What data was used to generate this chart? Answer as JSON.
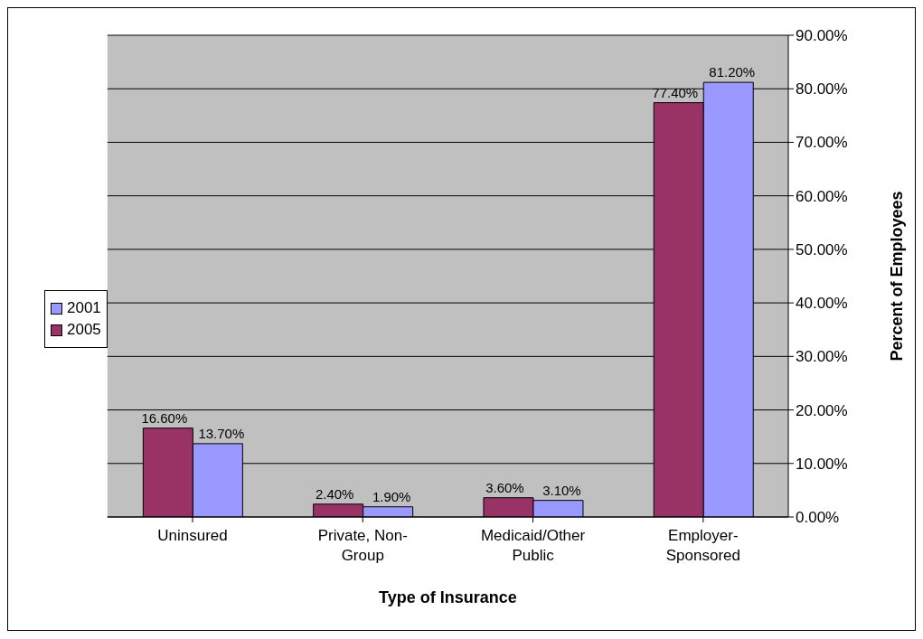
{
  "chart_data": {
    "type": "bar",
    "xlabel": "Type of Insurance",
    "ylabel": "Percent of Employees",
    "categories": [
      "Uninsured",
      "Private, Non-Group",
      "Medicaid/Other Public",
      "Employer-Sponsored"
    ],
    "series": [
      {
        "name": "2005",
        "color": "#993366",
        "values": [
          16.6,
          2.4,
          3.6,
          77.4
        ],
        "value_labels": [
          "16.60%",
          "2.40%",
          "3.60%",
          "77.40%"
        ]
      },
      {
        "name": "2001",
        "color": "#9999ff",
        "values": [
          13.7,
          1.9,
          3.1,
          81.2
        ],
        "value_labels": [
          "13.70%",
          "1.90%",
          "3.10%",
          "81.20%"
        ]
      }
    ],
    "ylim": [
      0,
      90
    ],
    "yticks": [
      {
        "value": 0,
        "label": "0.00%"
      },
      {
        "value": 10,
        "label": "10.00%"
      },
      {
        "value": 20,
        "label": "20.00%"
      },
      {
        "value": 30,
        "label": "30.00%"
      },
      {
        "value": 40,
        "label": "40.00%"
      },
      {
        "value": 50,
        "label": "50.00%"
      },
      {
        "value": 60,
        "label": "60.00%"
      },
      {
        "value": 70,
        "label": "70.00%"
      },
      {
        "value": 80,
        "label": "80.00%"
      },
      {
        "value": 90,
        "label": "90.00%"
      }
    ],
    "grid": "y",
    "legend": "left"
  }
}
